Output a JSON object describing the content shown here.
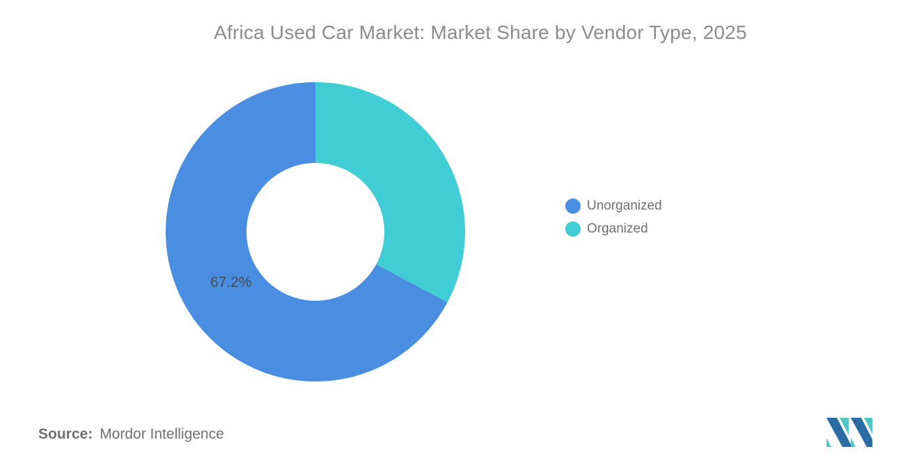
{
  "title": "Africa Used Car Market: Market Share by Vendor Type, 2025",
  "chart_data": {
    "type": "pie",
    "subtype": "donut",
    "title": "Africa Used Car Market: Market Share by Vendor Type, 2025",
    "categories": [
      "Unorganized",
      "Organized"
    ],
    "values": [
      67.2,
      32.8
    ],
    "slices": [
      {
        "label": "Unorganized",
        "value": 67.2,
        "value_label": "67.2%",
        "color": "#4a8ee2"
      },
      {
        "label": "Organized",
        "value": 32.8,
        "value_label": null,
        "color": "#41cdd4"
      }
    ],
    "start": "organized-slice-at-12-oclock-clockwise",
    "inner_radius_ratio": 0.46,
    "legend_position": "right"
  },
  "legend": [
    {
      "label": "Unorganized",
      "color": "#4a8ee2"
    },
    {
      "label": "Organized",
      "color": "#41cdd4"
    }
  ],
  "source": {
    "label": "Source:",
    "value": "Mordor Intelligence"
  },
  "logo": {
    "name": "mordor-intelligence-logo",
    "blue": "#2c6ca4",
    "teal": "#52c5c7"
  },
  "colors": {
    "title_text": "#8c8c8c",
    "legend_text": "#6e6e6e",
    "slice_value_text": "#4a4a4a",
    "source_text": "#6f6f6f",
    "background": "#ffffff"
  }
}
